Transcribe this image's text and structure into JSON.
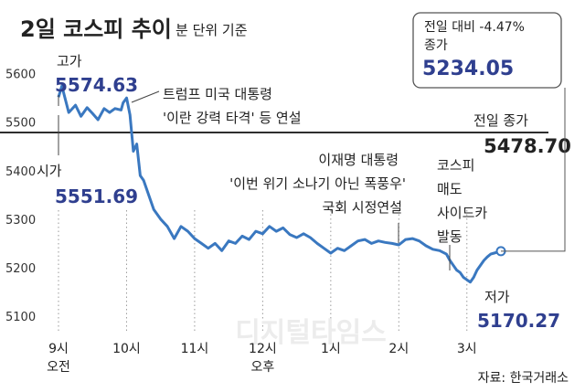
{
  "chart_data": {
    "type": "line",
    "title": "2일 코스피 추이",
    "subtitle": "분 단위 기준",
    "source": "자료: 한국거래소",
    "watermark": "디지털타임스",
    "ylim": [
      5100,
      5620
    ],
    "yticks": [
      5100,
      5200,
      5300,
      5400,
      5500,
      5600
    ],
    "xticks": [
      {
        "t": 9,
        "label": "9시",
        "sub": "오전"
      },
      {
        "t": 10,
        "label": "10시",
        "sub": ""
      },
      {
        "t": 11,
        "label": "11시",
        "sub": ""
      },
      {
        "t": 12,
        "label": "12시",
        "sub": "오후"
      },
      {
        "t": 13,
        "label": "1시",
        "sub": ""
      },
      {
        "t": 14,
        "label": "2시",
        "sub": ""
      },
      {
        "t": 15,
        "label": "3시",
        "sub": ""
      }
    ],
    "line_color": "#3a78c0",
    "accent_color": "#2f3f8f",
    "prev_close": {
      "label": "전일 종가",
      "value": "5478.70",
      "y": 5478.7
    },
    "summary_box": {
      "line1": "전일 대비 -4.47%",
      "line2": "종가",
      "value": "5234.05"
    },
    "annotations": {
      "high": {
        "label": "고가",
        "value": "5574.63"
      },
      "open": {
        "label": "시가",
        "value": "5551.69"
      },
      "low": {
        "label": "저가",
        "value": "5170.27"
      },
      "trump": {
        "line1": "트럼프 미국 대통령",
        "line2": "'이란 강력 타격' 등 연설"
      },
      "lee": {
        "line1": "이재명 대통령",
        "line2": "'이번 위기 소나기 아닌 폭풍우'",
        "line3": "국회 시정연설"
      },
      "sidecar": {
        "line1": "코스피",
        "line2": "매도",
        "line3": "사이드카",
        "line4": "발동"
      }
    },
    "series": [
      {
        "x": [
          9.0,
          9.05,
          9.15,
          9.25,
          9.33,
          9.42,
          9.5,
          9.58,
          9.67,
          9.75,
          9.83,
          9.92,
          9.95,
          10.0,
          10.05,
          10.1,
          10.15,
          10.2,
          10.25,
          10.3,
          10.35,
          10.4,
          10.5,
          10.6,
          10.7,
          10.8,
          10.9,
          11.0,
          11.1,
          11.2,
          11.3,
          11.4,
          11.5,
          11.6,
          11.7,
          11.8,
          11.9,
          12.0,
          12.1,
          12.2,
          12.3,
          12.4,
          12.5,
          12.6,
          12.7,
          12.8,
          12.9,
          13.0,
          13.1,
          13.2,
          13.3,
          13.4,
          13.5,
          13.6,
          13.7,
          13.8,
          13.9,
          14.0,
          14.1,
          14.2,
          14.3,
          14.4,
          14.5,
          14.6,
          14.7,
          14.75,
          14.8,
          14.85,
          14.9,
          14.95,
          15.0,
          15.05,
          15.1,
          15.15,
          15.2,
          15.25,
          15.3,
          15.35,
          15.4,
          15.45,
          15.5
        ],
        "y": [
          5551.69,
          5574.63,
          5520,
          5535,
          5512,
          5530,
          5518,
          5505,
          5528,
          5520,
          5528,
          5525,
          5540,
          5550,
          5515,
          5440,
          5455,
          5390,
          5380,
          5360,
          5340,
          5320,
          5300,
          5285,
          5260,
          5285,
          5275,
          5260,
          5250,
          5240,
          5250,
          5235,
          5255,
          5250,
          5265,
          5258,
          5275,
          5270,
          5285,
          5275,
          5282,
          5268,
          5262,
          5270,
          5262,
          5250,
          5240,
          5230,
          5240,
          5235,
          5245,
          5255,
          5258,
          5250,
          5255,
          5252,
          5250,
          5247,
          5258,
          5260,
          5255,
          5245,
          5238,
          5235,
          5228,
          5215,
          5205,
          5195,
          5190,
          5180,
          5175,
          5170.27,
          5180,
          5195,
          5205,
          5215,
          5222,
          5228,
          5230,
          5232,
          5234.05
        ]
      }
    ]
  }
}
